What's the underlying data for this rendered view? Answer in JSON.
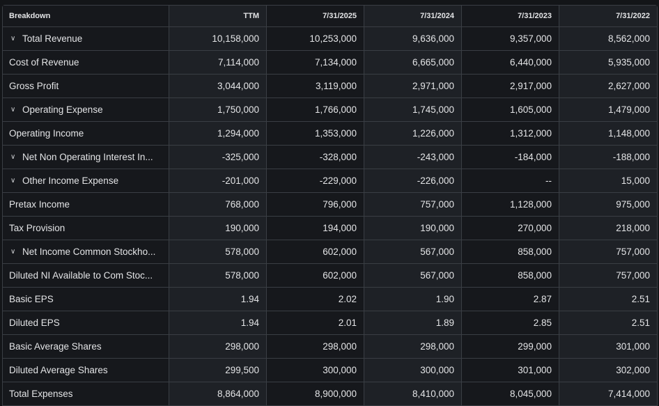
{
  "columns": [
    "Breakdown",
    "TTM",
    "7/31/2025",
    "7/31/2024",
    "7/31/2023",
    "7/31/2022"
  ],
  "rows": [
    {
      "label": "Total Revenue",
      "expandable": true,
      "values": [
        "10,158,000",
        "10,253,000",
        "9,636,000",
        "9,357,000",
        "8,562,000"
      ]
    },
    {
      "label": "Cost of Revenue",
      "expandable": false,
      "values": [
        "7,114,000",
        "7,134,000",
        "6,665,000",
        "6,440,000",
        "5,935,000"
      ]
    },
    {
      "label": "Gross Profit",
      "expandable": false,
      "values": [
        "3,044,000",
        "3,119,000",
        "2,971,000",
        "2,917,000",
        "2,627,000"
      ]
    },
    {
      "label": "Operating Expense",
      "expandable": true,
      "values": [
        "1,750,000",
        "1,766,000",
        "1,745,000",
        "1,605,000",
        "1,479,000"
      ]
    },
    {
      "label": "Operating Income",
      "expandable": false,
      "values": [
        "1,294,000",
        "1,353,000",
        "1,226,000",
        "1,312,000",
        "1,148,000"
      ]
    },
    {
      "label": "Net Non Operating Interest In...",
      "expandable": true,
      "values": [
        "-325,000",
        "-328,000",
        "-243,000",
        "-184,000",
        "-188,000"
      ]
    },
    {
      "label": "Other Income Expense",
      "expandable": true,
      "values": [
        "-201,000",
        "-229,000",
        "-226,000",
        "--",
        "15,000"
      ]
    },
    {
      "label": "Pretax Income",
      "expandable": false,
      "values": [
        "768,000",
        "796,000",
        "757,000",
        "1,128,000",
        "975,000"
      ]
    },
    {
      "label": "Tax Provision",
      "expandable": false,
      "values": [
        "190,000",
        "194,000",
        "190,000",
        "270,000",
        "218,000"
      ]
    },
    {
      "label": "Net Income Common Stockho...",
      "expandable": true,
      "values": [
        "578,000",
        "602,000",
        "567,000",
        "858,000",
        "757,000"
      ]
    },
    {
      "label": "Diluted NI Available to Com Stoc...",
      "expandable": false,
      "values": [
        "578,000",
        "602,000",
        "567,000",
        "858,000",
        "757,000"
      ]
    },
    {
      "label": "Basic EPS",
      "expandable": false,
      "values": [
        "1.94",
        "2.02",
        "1.90",
        "2.87",
        "2.51"
      ]
    },
    {
      "label": "Diluted EPS",
      "expandable": false,
      "values": [
        "1.94",
        "2.01",
        "1.89",
        "2.85",
        "2.51"
      ]
    },
    {
      "label": "Basic Average Shares",
      "expandable": false,
      "values": [
        "298,000",
        "298,000",
        "298,000",
        "299,000",
        "301,000"
      ]
    },
    {
      "label": "Diluted Average Shares",
      "expandable": false,
      "values": [
        "299,500",
        "300,000",
        "300,000",
        "301,000",
        "302,000"
      ]
    },
    {
      "label": "Total Expenses",
      "expandable": false,
      "values": [
        "8,864,000",
        "8,900,000",
        "8,410,000",
        "8,045,000",
        "7,414,000"
      ]
    }
  ]
}
